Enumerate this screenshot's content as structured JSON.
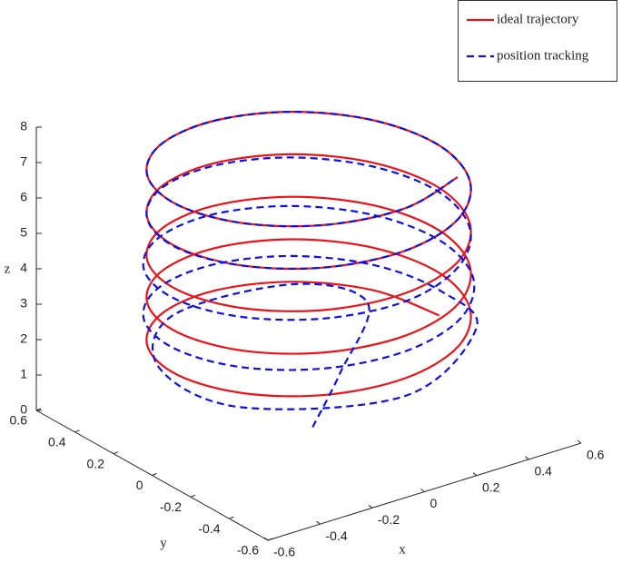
{
  "chart_data": {
    "type": "line3d",
    "xlabel": "x",
    "ylabel": "y",
    "zlabel": "z",
    "xlim": [
      -0.6,
      0.6
    ],
    "ylim": [
      -0.6,
      0.6
    ],
    "zlim": [
      0,
      8
    ],
    "xticks": [
      -0.6,
      -0.4,
      -0.2,
      0,
      0.2,
      0.4,
      0.6
    ],
    "yticks": [
      -0.6,
      -0.4,
      -0.2,
      0,
      0.2,
      0.4,
      0.6
    ],
    "zticks": [
      0,
      1,
      2,
      3,
      4,
      5,
      6,
      7,
      8
    ],
    "legend": "upper right",
    "series": [
      {
        "name": "ideal trajectory",
        "color": "#e8141a",
        "line_style": "solid",
        "x": [
          0.5,
          0.433,
          0.25,
          0,
          -0.25,
          -0.433,
          -0.5,
          -0.433,
          -0.25,
          0,
          0.25,
          0.433,
          0.5,
          0.433,
          0.25,
          0,
          -0.25,
          -0.433,
          -0.5,
          -0.433,
          -0.25,
          0,
          0.25,
          0.433,
          0.5,
          0.433,
          0.25,
          0,
          -0.25,
          -0.433,
          -0.5,
          -0.433,
          -0.25,
          0,
          0.25,
          0.433,
          0.5,
          0.433,
          0.25,
          0,
          -0.25,
          -0.433,
          -0.5,
          -0.433,
          -0.25,
          0,
          0.25,
          0.433,
          0.5,
          0.433,
          0.25,
          0,
          -0.25,
          -0.433,
          -0.5,
          -0.433,
          -0.25,
          0,
          0.25
        ],
        "y": [
          0,
          0.25,
          0.433,
          0.5,
          0.433,
          0.25,
          0,
          -0.25,
          -0.433,
          -0.5,
          -0.433,
          -0.25,
          0,
          0.25,
          0.433,
          0.5,
          0.433,
          0.25,
          0,
          -0.25,
          -0.433,
          -0.5,
          -0.433,
          -0.25,
          0,
          0.25,
          0.433,
          0.5,
          0.433,
          0.25,
          0,
          -0.25,
          -0.433,
          -0.5,
          -0.433,
          -0.25,
          0,
          0.25,
          0.433,
          0.5,
          0.433,
          0.25,
          0,
          -0.25,
          -0.433,
          -0.5,
          -0.433,
          -0.25,
          0,
          0.25,
          0.433,
          0.5,
          0.433,
          0.25,
          0,
          -0.25,
          -0.433,
          -0.5,
          -0.433
        ],
        "z": [
          2,
          2.1,
          2.2,
          2.3,
          2.4,
          2.5,
          2.6,
          2.7,
          2.8,
          2.9,
          3,
          3.1,
          3.2,
          3.3,
          3.4,
          3.5,
          3.6,
          3.7,
          3.8,
          3.9,
          4,
          4.1,
          4.2,
          4.3,
          4.4,
          4.5,
          4.6,
          4.7,
          4.8,
          4.9,
          5,
          5.1,
          5.2,
          5.3,
          5.4,
          5.5,
          5.6,
          5.7,
          5.8,
          5.9,
          6,
          6.1,
          6.2,
          6.3,
          6.4,
          6.5,
          6.6,
          6.7,
          6.8,
          6.9,
          7,
          7.1,
          7.2,
          7.3,
          7.4,
          7.5,
          7.6,
          7.7,
          7.8
        ]
      },
      {
        "name": "position tracking",
        "color": "#1010e0",
        "line_style": "dashed",
        "x": [
          0,
          0.1,
          0.3,
          0.2,
          -0.22,
          -0.48,
          -0.45,
          0,
          0.45,
          0.51,
          0.442,
          0.255,
          0,
          -0.255,
          -0.442,
          -0.51,
          -0.442,
          -0.255,
          0,
          0.255,
          0.442,
          0.51,
          0.442,
          0.255,
          0,
          -0.255,
          -0.442,
          -0.51,
          -0.442,
          -0.255,
          0,
          0.25,
          0.433,
          0.5,
          0.433,
          0.25,
          0,
          -0.25,
          -0.433,
          -0.5,
          -0.433,
          -0.25,
          0,
          0.25,
          0.433,
          0.5,
          0.433,
          0.25,
          0,
          -0.25,
          -0.433,
          -0.5,
          -0.433,
          -0.25,
          0,
          0.25
        ],
        "y": [
          -0.02,
          -0.03,
          0.1,
          0.35,
          0.4,
          0.13,
          -0.25,
          -0.5,
          -0.26,
          0,
          0.255,
          0.442,
          0.51,
          0.442,
          0.255,
          0,
          -0.255,
          -0.442,
          -0.51,
          -0.442,
          -0.255,
          0,
          0.255,
          0.442,
          0.51,
          0.442,
          0.255,
          0,
          -0.255,
          -0.442,
          -0.51,
          -0.433,
          -0.25,
          0,
          0.25,
          0.433,
          0.5,
          0.433,
          0.25,
          0,
          -0.25,
          -0.433,
          -0.5,
          -0.433,
          -0.25,
          0,
          0.25,
          0.433,
          0.5,
          0.433,
          0.25,
          0,
          -0.25,
          -0.433,
          -0.5,
          -0.433
        ],
        "z": [
          0.05,
          1.41,
          2.5,
          2.5,
          2.45,
          2.4,
          2.35,
          2.4,
          2.55,
          2.65,
          2.77,
          2.89,
          3,
          3.12,
          3.24,
          3.36,
          3.47,
          3.59,
          3.71,
          3.83,
          3.95,
          4.06,
          4.18,
          4.3,
          4.42,
          4.53,
          4.65,
          4.77,
          4.89,
          5,
          5.12,
          5.24,
          5.36,
          5.48,
          5.59,
          5.71,
          5.83,
          5.95,
          6.07,
          6.18,
          6.3,
          6.4,
          6.5,
          6.6,
          6.7,
          6.8,
          6.9,
          7,
          7.1,
          7.2,
          7.3,
          7.4,
          7.5,
          7.6,
          7.7,
          7.8
        ]
      }
    ]
  }
}
